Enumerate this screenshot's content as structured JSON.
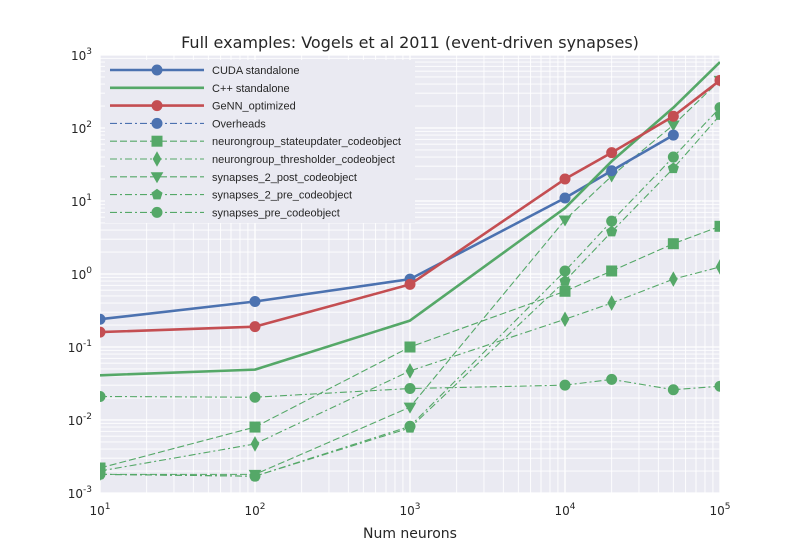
{
  "chart_data": {
    "type": "line",
    "title": "Full examples: Vogels et al 2011 (event-driven synapses)",
    "xlabel": "Num neurons",
    "ylabel": "",
    "xscale": "log",
    "yscale": "log",
    "xlim": [
      10,
      100000
    ],
    "ylim": [
      0.001,
      1000
    ],
    "x_ticks": [
      {
        "base": "10",
        "exp": "1"
      },
      {
        "base": "10",
        "exp": "2"
      },
      {
        "base": "10",
        "exp": "3"
      },
      {
        "base": "10",
        "exp": "4"
      },
      {
        "base": "10",
        "exp": "5"
      }
    ],
    "y_ticks": [
      {
        "base": "10",
        "exp": "-3"
      },
      {
        "base": "10",
        "exp": "-2"
      },
      {
        "base": "10",
        "exp": "-1"
      },
      {
        "base": "10",
        "exp": "0"
      },
      {
        "base": "10",
        "exp": "1"
      },
      {
        "base": "10",
        "exp": "2"
      },
      {
        "base": "10",
        "exp": "3"
      }
    ],
    "grid": true,
    "legend_position": "top-left",
    "background": "#eaeaf2",
    "series": [
      {
        "name": "CUDA standalone",
        "color": "#4c72b0",
        "style": "solid",
        "marker": "circle",
        "x": [
          10,
          100,
          1000,
          10000,
          20000,
          50000
        ],
        "y": [
          0.24,
          0.42,
          0.85,
          11,
          26,
          80
        ]
      },
      {
        "name": "C++ standalone",
        "color": "#55a868",
        "style": "solid",
        "marker": "none",
        "x": [
          10,
          100,
          1000,
          10000,
          20000,
          50000,
          100000
        ],
        "y": [
          0.041,
          0.049,
          0.23,
          8,
          35,
          190,
          800
        ]
      },
      {
        "name": "GeNN_optimized",
        "color": "#c44e52",
        "style": "solid",
        "marker": "circle",
        "x": [
          10,
          100,
          1000,
          10000,
          20000,
          50000,
          100000
        ],
        "y": [
          0.16,
          0.19,
          0.72,
          20,
          46,
          145,
          450
        ]
      },
      {
        "name": "Overheads",
        "color": "#4c72b0",
        "style": "dashdot",
        "marker": "circle",
        "x": [],
        "y": []
      },
      {
        "name": "neurongroup_stateupdater_codeobject",
        "color": "#55a868",
        "style": "dashed",
        "marker": "square",
        "x": [
          10,
          100,
          1000,
          10000,
          20000,
          50000,
          100000
        ],
        "y": [
          0.0022,
          0.008,
          0.1,
          0.58,
          1.1,
          2.6,
          4.5
        ]
      },
      {
        "name": "neurongroup_thresholder_codeobject",
        "color": "#55a868",
        "style": "dashdot",
        "marker": "diamond",
        "x": [
          10,
          100,
          1000,
          10000,
          20000,
          50000,
          100000
        ],
        "y": [
          0.002,
          0.0047,
          0.047,
          0.24,
          0.4,
          0.85,
          1.25
        ]
      },
      {
        "name": "synapses_2_post_codeobject",
        "color": "#55a868",
        "style": "dashed",
        "marker": "triangle-down",
        "x": [
          10,
          100,
          1000,
          10000,
          20000,
          50000,
          100000
        ],
        "y": [
          0.0018,
          0.0018,
          0.015,
          5.5,
          22,
          110,
          450
        ]
      },
      {
        "name": "synapses_2_pre_codeobject",
        "color": "#55a868",
        "style": "dashdot",
        "marker": "pentagon",
        "x": [
          10,
          100,
          1000,
          10000,
          20000,
          50000,
          100000
        ],
        "y": [
          0.0018,
          0.0017,
          0.0078,
          0.8,
          3.8,
          28,
          150
        ]
      },
      {
        "name": "synapses_pre_codeobject",
        "color": "#55a868",
        "style": "dashdot",
        "marker": "circle",
        "x": [
          10,
          100,
          1000,
          10000,
          20000,
          50000,
          100000
        ],
        "y": [
          0.0018,
          0.0017,
          0.0082,
          1.1,
          5.3,
          40,
          190
        ]
      },
      {
        "name": "",
        "color": "#55a868",
        "style": "dashdot",
        "marker": "circle",
        "x": [
          10,
          100,
          1000,
          10000,
          20000,
          50000,
          100000
        ],
        "y": [
          0.021,
          0.0205,
          0.027,
          0.03,
          0.036,
          0.026,
          0.029
        ]
      }
    ]
  }
}
